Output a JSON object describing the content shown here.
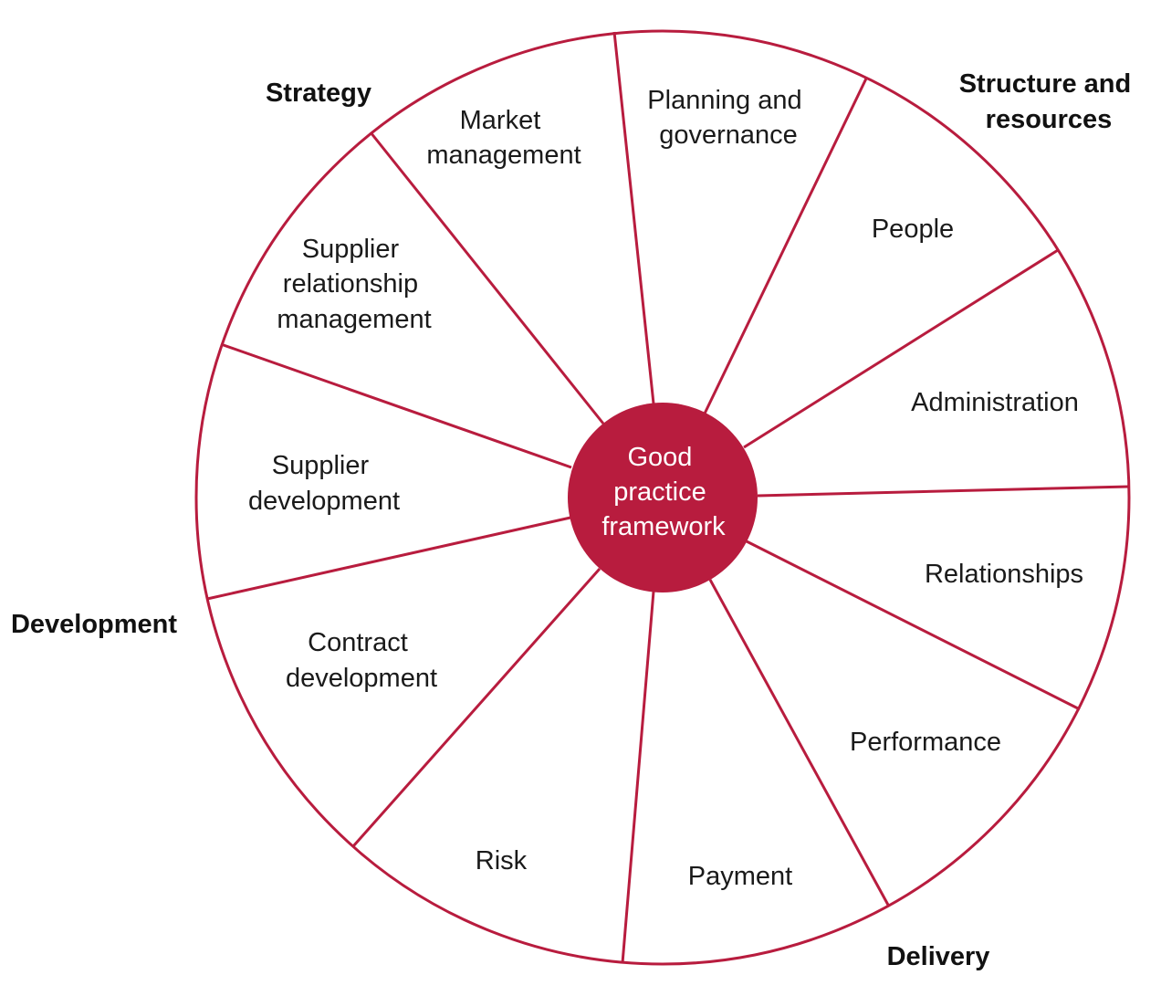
{
  "colors": {
    "accent": "#b81c3e",
    "text": "#1a1a1a",
    "background": "#ffffff"
  },
  "hub": {
    "lines": [
      "Good",
      "practice",
      "framework"
    ]
  },
  "segments": [
    {
      "id": "planning-and-governance",
      "lines": [
        "Planning and",
        "governance"
      ]
    },
    {
      "id": "people",
      "lines": [
        "People"
      ]
    },
    {
      "id": "administration",
      "lines": [
        "Administration"
      ]
    },
    {
      "id": "relationships",
      "lines": [
        "Relationships"
      ]
    },
    {
      "id": "performance",
      "lines": [
        "Performance"
      ]
    },
    {
      "id": "payment",
      "lines": [
        "Payment"
      ]
    },
    {
      "id": "risk",
      "lines": [
        "Risk"
      ]
    },
    {
      "id": "contract-development",
      "lines": [
        "Contract",
        "development"
      ]
    },
    {
      "id": "supplier-development",
      "lines": [
        "Supplier",
        "development"
      ]
    },
    {
      "id": "supplier-relationship-management",
      "lines": [
        "Supplier",
        "relationship",
        "management"
      ]
    },
    {
      "id": "market-management",
      "lines": [
        "Market",
        "management"
      ]
    }
  ],
  "groups": [
    {
      "id": "strategy",
      "lines": [
        "Strategy"
      ]
    },
    {
      "id": "structure-and-resources",
      "lines": [
        "Structure and",
        "resources"
      ]
    },
    {
      "id": "development",
      "lines": [
        "Development"
      ]
    },
    {
      "id": "delivery",
      "lines": [
        "Delivery"
      ]
    }
  ]
}
